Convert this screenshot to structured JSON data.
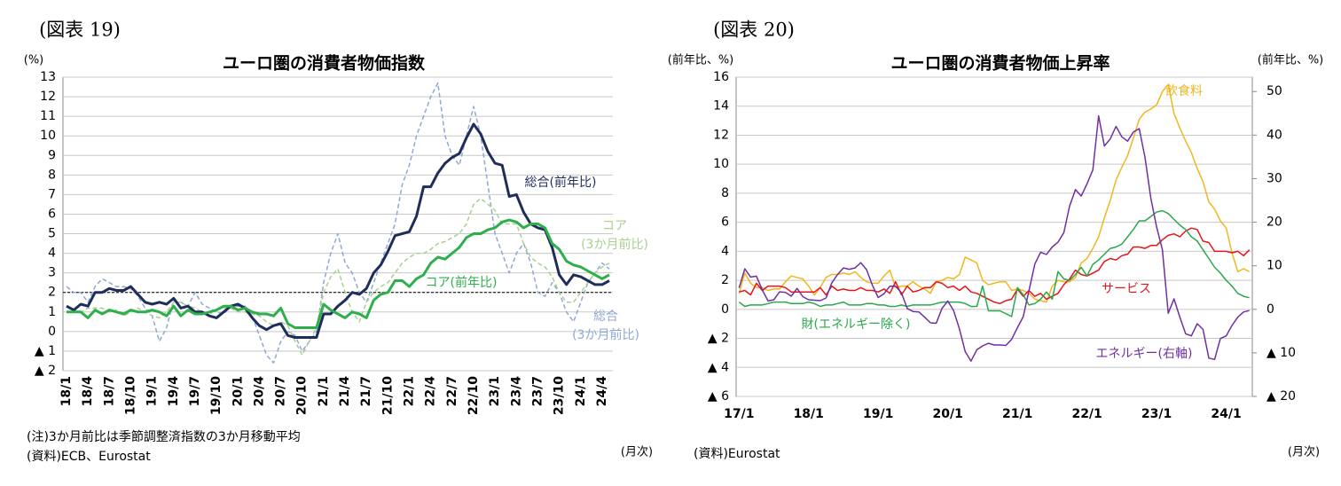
{
  "chart_data": [
    {
      "type": "line",
      "figure_label": "(図表 19)",
      "title": "ユーロ圏の消費者物価指数",
      "y_unit": "(%)",
      "note": "(注)3か月前比は季節調整済指数の3か月移動平均",
      "source": "(資料)ECB、Eurostat",
      "x_unit": "(月次)",
      "categories": [
        "18/1",
        null,
        null,
        "18/4",
        null,
        null,
        "18/7",
        null,
        null,
        "18/10",
        null,
        null,
        "19/1",
        null,
        null,
        "19/4",
        null,
        null,
        "19/7",
        null,
        null,
        "19/10",
        null,
        null,
        "20/1",
        null,
        null,
        "20/4",
        null,
        null,
        "20/7",
        null,
        null,
        "20/10",
        null,
        null,
        "21/1",
        null,
        null,
        "21/4",
        null,
        null,
        "21/7",
        null,
        null,
        "21/10",
        null,
        null,
        "22/1",
        null,
        null,
        "22/4",
        null,
        null,
        "22/7",
        null,
        null,
        "22/10",
        null,
        null,
        "23/1",
        null,
        null,
        "23/4",
        null,
        null,
        "23/7",
        null,
        null,
        "23/10",
        null,
        null,
        "24/1",
        null,
        null,
        "24/4",
        null
      ],
      "ylim": [
        -2,
        13
      ],
      "yticks": [
        {
          "value": -2,
          "label": "▲ 2"
        },
        {
          "value": -1,
          "label": "▲ 1"
        },
        0,
        1,
        2,
        3,
        4,
        5,
        6,
        7,
        8,
        9,
        10,
        11,
        12,
        13
      ],
      "grid": true,
      "reference_line": 2,
      "series": [
        {
          "name": "総合\n(3か月前比)",
          "color": "#8fa8d6",
          "dashed": true,
          "values": [
            2.3,
            2.0,
            2.0,
            1.5,
            2.3,
            2.7,
            2.5,
            2.3,
            2.3,
            2.2,
            1.8,
            1.2,
            0.8,
            -0.5,
            0.2,
            1.6,
            1.5,
            1.3,
            2.0,
            1.4,
            1.2,
            1.0,
            0.9,
            1.3,
            1.3,
            1.3,
            0.8,
            -0.2,
            -1.2,
            -1.6,
            -0.5,
            0.0,
            -0.2,
            -1.0,
            -0.5,
            0.0,
            2.5,
            4.0,
            5.0,
            3.5,
            3.0,
            2.0,
            1.5,
            2.5,
            3.5,
            4.5,
            5.5,
            7.5,
            8.5,
            10.0,
            11.0,
            12.0,
            12.7,
            10.0,
            9.0,
            8.5,
            10.0,
            11.5,
            10.0,
            7.5,
            5.0,
            4.0,
            3.0,
            4.0,
            4.5,
            3.5,
            2.0,
            1.8,
            2.5,
            2.0,
            1.0,
            0.5,
            1.5,
            2.5,
            3.0,
            3.5,
            3.2
          ]
        },
        {
          "name": "コア\n(3か月前比)",
          "color": "#a9d18e",
          "dashed": true,
          "values": [
            1.3,
            1.1,
            1.0,
            1.2,
            1.2,
            1.2,
            1.0,
            1.1,
            0.8,
            1.0,
            1.2,
            1.0,
            0.8,
            0.7,
            1.0,
            1.5,
            1.5,
            1.3,
            1.2,
            1.0,
            0.9,
            1.1,
            1.2,
            1.2,
            1.0,
            1.0,
            0.9,
            0.8,
            0.5,
            0.3,
            0.5,
            0.3,
            -0.5,
            -1.2,
            -0.5,
            0.2,
            2.0,
            2.8,
            3.2,
            2.0,
            1.0,
            0.5,
            1.5,
            2.0,
            2.3,
            2.5,
            3.0,
            3.5,
            3.8,
            4.0,
            4.0,
            4.2,
            4.5,
            4.6,
            4.8,
            5.0,
            5.5,
            6.5,
            6.8,
            6.5,
            6.2,
            5.5,
            5.5,
            5.5,
            4.5,
            3.8,
            3.5,
            3.3,
            2.8,
            2.0,
            1.5,
            1.5,
            2.0,
            2.5,
            3.0,
            3.3,
            3.5
          ]
        },
        {
          "name": "総合(前年比)",
          "color": "#1f2d5a",
          "dashed": false,
          "values": [
            1.3,
            1.1,
            1.4,
            1.3,
            2.0,
            2.0,
            2.2,
            2.1,
            2.1,
            2.3,
            1.9,
            1.5,
            1.4,
            1.5,
            1.4,
            1.7,
            1.2,
            1.3,
            1.0,
            1.0,
            0.8,
            0.7,
            1.0,
            1.3,
            1.4,
            1.2,
            0.7,
            0.3,
            0.1,
            0.3,
            0.4,
            -0.2,
            -0.3,
            -0.3,
            -0.3,
            -0.3,
            0.9,
            0.9,
            1.3,
            1.6,
            2.0,
            1.9,
            2.2,
            3.0,
            3.4,
            4.1,
            4.9,
            5.0,
            5.1,
            5.9,
            7.4,
            7.4,
            8.1,
            8.6,
            8.9,
            9.1,
            9.9,
            10.6,
            10.1,
            9.2,
            8.6,
            8.5,
            6.9,
            7.0,
            6.1,
            5.5,
            5.3,
            5.2,
            4.3,
            2.9,
            2.4,
            2.9,
            2.8,
            2.6,
            2.4,
            2.4,
            2.6
          ]
        },
        {
          "name": "コア(前年比)",
          "color": "#2db04b",
          "dashed": false,
          "values": [
            1.0,
            1.0,
            1.0,
            0.7,
            1.1,
            0.9,
            1.1,
            1.0,
            0.9,
            1.1,
            1.0,
            1.0,
            1.1,
            1.0,
            0.8,
            1.3,
            0.8,
            1.1,
            0.9,
            0.9,
            1.0,
            1.1,
            1.3,
            1.3,
            1.1,
            1.2,
            1.0,
            0.9,
            0.9,
            0.8,
            1.2,
            0.4,
            0.2,
            0.2,
            0.2,
            0.2,
            1.4,
            1.1,
            0.9,
            0.7,
            1.0,
            0.9,
            0.7,
            1.6,
            1.9,
            2.0,
            2.6,
            2.6,
            2.3,
            2.7,
            2.9,
            3.5,
            3.8,
            3.7,
            4.0,
            4.3,
            4.8,
            5.0,
            5.0,
            5.2,
            5.3,
            5.6,
            5.7,
            5.6,
            5.3,
            5.5,
            5.5,
            5.3,
            4.5,
            4.2,
            3.6,
            3.4,
            3.3,
            3.1,
            2.9,
            2.7,
            2.9
          ]
        }
      ]
    },
    {
      "type": "line",
      "figure_label": "(図表 20)",
      "title": "ユーロ圏の消費者物価上昇率",
      "y_unit": "(前年比、%)",
      "y2_unit": "(前年比、%)",
      "source": "(資料)Eurostat",
      "x_unit": "(月次)",
      "categories": [
        "17/1",
        null,
        null,
        null,
        null,
        null,
        null,
        null,
        null,
        null,
        null,
        null,
        "18/1",
        null,
        null,
        null,
        null,
        null,
        null,
        null,
        null,
        null,
        null,
        null,
        "19/1",
        null,
        null,
        null,
        null,
        null,
        null,
        null,
        null,
        null,
        null,
        null,
        "20/1",
        null,
        null,
        null,
        null,
        null,
        null,
        null,
        null,
        null,
        null,
        null,
        "21/1",
        null,
        null,
        null,
        null,
        null,
        null,
        null,
        null,
        null,
        null,
        null,
        "22/1",
        null,
        null,
        null,
        null,
        null,
        null,
        null,
        null,
        null,
        null,
        null,
        "23/1",
        null,
        null,
        null,
        null,
        null,
        null,
        null,
        null,
        null,
        null,
        null,
        "24/1",
        null,
        null,
        null,
        null
      ],
      "ylim": [
        -6,
        16
      ],
      "yticks": [
        {
          "value": -6,
          "label": "▲ 6"
        },
        {
          "value": -4,
          "label": "▲ 4"
        },
        {
          "value": -2,
          "label": "▲ 2"
        },
        0,
        2,
        4,
        6,
        8,
        10,
        12,
        14,
        16
      ],
      "y2lim": [
        -20,
        53.3
      ],
      "y2ticks": [
        {
          "value": -20,
          "label": "▲ 20"
        },
        {
          "value": -10,
          "label": "▲ 10"
        },
        0,
        10,
        20,
        30,
        40,
        50
      ],
      "grid": true,
      "series": [
        {
          "name": "飲食料",
          "color": "#f2b61e",
          "dashed": false,
          "values": [
            1.1,
            2.5,
            1.8,
            1.5,
            1.5,
            1.3,
            1.4,
            1.4,
            1.9,
            2.3,
            2.2,
            2.1,
            1.6,
            1.0,
            1.5,
            2.2,
            2.4,
            2.4,
            2.5,
            2.4,
            2.6,
            2.2,
            1.9,
            1.8,
            1.8,
            2.3,
            2.7,
            1.5,
            1.6,
            1.6,
            1.9,
            1.6,
            1.4,
            1.1,
            1.9,
            2.0,
            2.2,
            2.1,
            2.4,
            3.6,
            3.4,
            3.2,
            2.0,
            1.7,
            1.8,
            1.9,
            1.9,
            1.3,
            1.4,
            1.3,
            1.1,
            0.7,
            0.6,
            0.5,
            1.6,
            2.0,
            1.9,
            1.9,
            2.2,
            3.2,
            3.5,
            4.2,
            5.0,
            6.3,
            7.5,
            8.9,
            9.8,
            10.6,
            11.8,
            13.1,
            13.6,
            13.8,
            14.1,
            15.0,
            15.5,
            13.5,
            12.5,
            11.6,
            10.8,
            9.7,
            8.8,
            7.4,
            6.9,
            6.1,
            5.6,
            3.9,
            2.6,
            2.8,
            2.6
          ]
        },
        {
          "name": "サービス",
          "color": "#e8141c",
          "dashed": false,
          "values": [
            1.2,
            1.3,
            1.0,
            1.8,
            1.3,
            1.6,
            1.6,
            1.6,
            1.5,
            1.2,
            1.2,
            1.2,
            1.2,
            1.2,
            1.5,
            1.0,
            1.6,
            1.3,
            1.4,
            1.3,
            1.3,
            1.5,
            1.3,
            1.3,
            1.2,
            1.4,
            1.1,
            1.9,
            1.0,
            1.6,
            1.2,
            1.3,
            1.5,
            1.5,
            1.9,
            1.8,
            1.5,
            1.6,
            1.3,
            1.6,
            1.2,
            1.1,
            0.9,
            0.7,
            0.5,
            0.4,
            0.6,
            0.7,
            1.4,
            0.9,
            1.3,
            0.9,
            1.1,
            0.7,
            0.9,
            1.1,
            1.7,
            2.1,
            2.7,
            2.4,
            2.3,
            2.5,
            2.7,
            3.3,
            3.5,
            3.4,
            3.7,
            3.8,
            4.3,
            4.3,
            4.2,
            4.4,
            4.4,
            4.8,
            5.1,
            5.2,
            5.0,
            5.4,
            5.6,
            5.5,
            4.7,
            4.6,
            4.0,
            4.0,
            4.0,
            3.9,
            4.0,
            3.7,
            4.1
          ]
        },
        {
          "name": "財(エネルギー除く)",
          "color": "#2aa84a",
          "dashed": false,
          "values": [
            0.5,
            0.2,
            0.3,
            0.3,
            0.3,
            0.4,
            0.5,
            0.5,
            0.5,
            0.4,
            0.4,
            0.4,
            0.5,
            0.4,
            0.2,
            0.3,
            0.3,
            0.4,
            0.5,
            0.3,
            0.3,
            0.3,
            0.4,
            0.4,
            0.3,
            0.3,
            0.2,
            0.2,
            0.3,
            0.2,
            0.3,
            0.3,
            0.3,
            0.3,
            0.4,
            0.5,
            0.5,
            0.5,
            0.5,
            0.4,
            0.2,
            0.2,
            1.6,
            -0.1,
            -0.1,
            -0.1,
            -0.3,
            -0.5,
            1.5,
            1.0,
            0.3,
            0.4,
            0.7,
            1.2,
            0.7,
            2.6,
            2.1,
            2.0,
            2.4,
            2.9,
            2.3,
            3.1,
            3.4,
            3.8,
            4.2,
            4.3,
            4.5,
            5.0,
            5.5,
            6.1,
            6.1,
            6.4,
            6.7,
            6.8,
            6.6,
            6.2,
            5.8,
            5.5,
            5.0,
            4.7,
            4.1,
            3.5,
            2.9,
            2.5,
            2.0,
            1.6,
            1.1,
            0.9,
            0.8
          ]
        },
        {
          "name": "エネルギー(右軸)",
          "color": "#7030a0",
          "dashed": false,
          "axis": "y2",
          "values": [
            4.9,
            9.3,
            7.4,
            7.6,
            4.5,
            1.9,
            2.2,
            4.0,
            3.9,
            3.0,
            4.8,
            2.9,
            2.2,
            2.1,
            2.0,
            2.6,
            6.1,
            8.0,
            9.5,
            9.2,
            9.5,
            10.7,
            9.1,
            5.5,
            2.7,
            3.6,
            5.3,
            5.3,
            3.8,
            0.2,
            -0.5,
            -0.6,
            -1.8,
            -3.1,
            -3.2,
            0.2,
            1.9,
            -0.3,
            -4.5,
            -9.7,
            -11.9,
            -9.3,
            -8.4,
            -7.8,
            -8.2,
            -8.2,
            -8.3,
            -6.9,
            -4.2,
            -1.7,
            4.3,
            10.4,
            13.1,
            12.6,
            14.3,
            15.4,
            17.6,
            23.7,
            27.5,
            26.0,
            28.8,
            32.0,
            44.4,
            37.5,
            39.1,
            42.0,
            39.6,
            38.6,
            40.7,
            41.5,
            34.9,
            25.5,
            18.9,
            13.7,
            -0.9,
            2.4,
            -1.8,
            -5.6,
            -6.1,
            -3.3,
            -4.6,
            -11.2,
            -11.5,
            -6.7,
            -6.1,
            -3.7,
            -1.8,
            -0.6,
            -0.3
          ]
        }
      ]
    }
  ]
}
